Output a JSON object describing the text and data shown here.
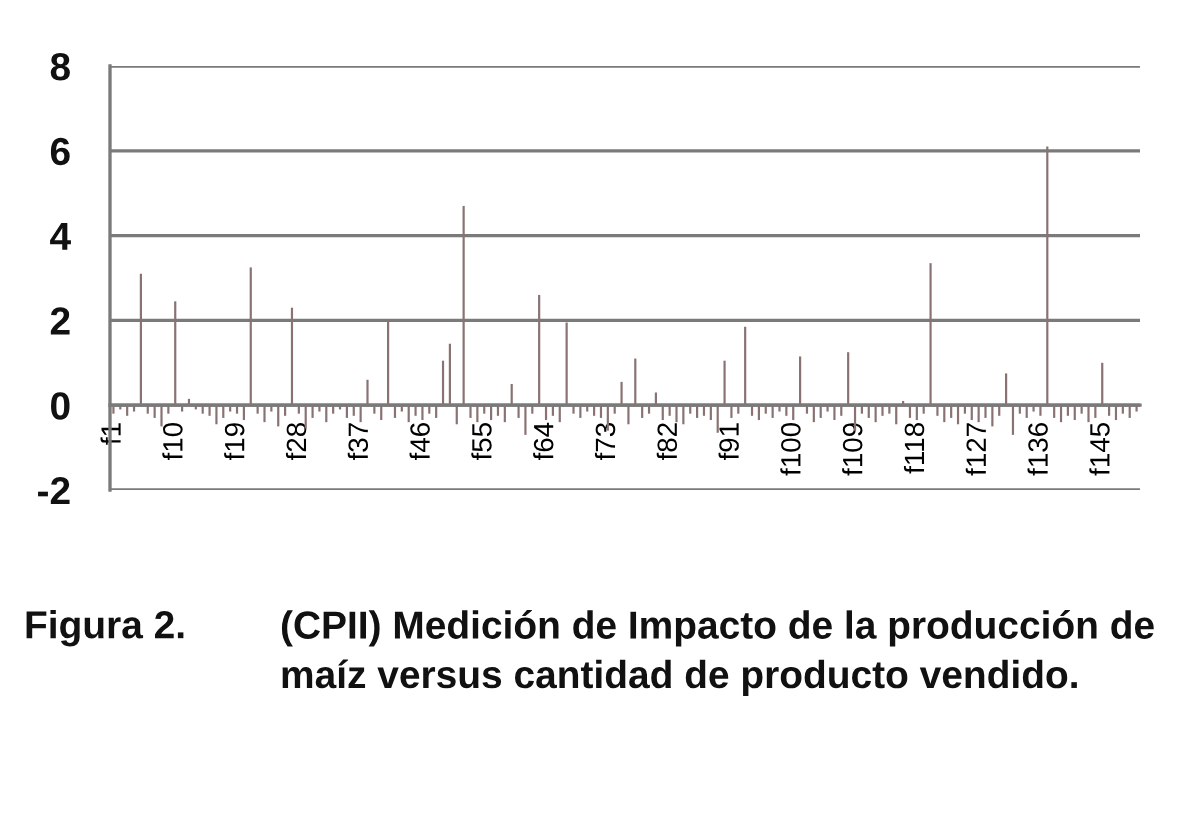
{
  "chart_data": {
    "type": "bar",
    "categories": [
      "f1",
      null,
      null,
      null,
      null,
      null,
      null,
      null,
      null,
      "f10",
      null,
      null,
      null,
      null,
      null,
      null,
      null,
      null,
      "f19",
      null,
      null,
      null,
      null,
      null,
      null,
      null,
      null,
      "f28",
      null,
      null,
      null,
      null,
      null,
      null,
      null,
      null,
      "f37",
      null,
      null,
      null,
      null,
      null,
      null,
      null,
      null,
      "f46",
      null,
      null,
      null,
      null,
      null,
      null,
      null,
      null,
      "f55",
      null,
      null,
      null,
      null,
      null,
      null,
      null,
      null,
      "f64",
      null,
      null,
      null,
      null,
      null,
      null,
      null,
      null,
      "f73",
      null,
      null,
      null,
      null,
      null,
      null,
      null,
      null,
      "f82",
      null,
      null,
      null,
      null,
      null,
      null,
      null,
      null,
      "f91",
      null,
      null,
      null,
      null,
      null,
      null,
      null,
      null,
      "f100",
      null,
      null,
      null,
      null,
      null,
      null,
      null,
      null,
      "f109",
      null,
      null,
      null,
      null,
      null,
      null,
      null,
      null,
      "f118",
      null,
      null,
      null,
      null,
      null,
      null,
      null,
      null,
      "f127",
      null,
      null,
      null,
      null,
      null,
      null,
      null,
      null,
      "f136",
      null,
      null,
      null,
      null,
      null,
      null,
      null,
      null,
      "f145",
      null,
      null,
      null,
      null,
      null
    ],
    "values": [
      -0.2,
      -0.1,
      -0.25,
      -0.15,
      3.1,
      -0.2,
      -0.3,
      -0.5,
      -0.2,
      2.45,
      -0.15,
      0.15,
      -0.1,
      -0.2,
      -0.25,
      -0.45,
      -0.3,
      -0.15,
      -0.2,
      -0.35,
      3.25,
      -0.2,
      -0.4,
      -0.15,
      -0.5,
      -0.25,
      2.3,
      -0.2,
      -0.55,
      -0.3,
      -0.15,
      -0.4,
      -0.2,
      -0.1,
      -0.3,
      -0.25,
      -0.4,
      0.6,
      -0.2,
      -0.35,
      2.0,
      -0.3,
      -0.15,
      -0.4,
      -0.25,
      -0.35,
      -0.2,
      -0.3,
      1.05,
      1.45,
      -0.45,
      4.7,
      -0.3,
      -0.4,
      -0.2,
      -0.35,
      -0.25,
      -0.4,
      0.5,
      -0.3,
      -0.7,
      -0.2,
      2.6,
      -0.35,
      -0.25,
      -0.4,
      1.95,
      -0.2,
      -0.3,
      -0.15,
      -0.25,
      -0.3,
      -0.6,
      -0.2,
      0.55,
      -0.45,
      1.1,
      -0.3,
      -0.2,
      0.3,
      -0.35,
      -0.25,
      -0.4,
      -0.45,
      -0.2,
      -0.3,
      -0.25,
      -0.35,
      -0.65,
      1.05,
      -0.3,
      -0.2,
      1.85,
      -0.25,
      -0.35,
      -0.2,
      -0.3,
      -0.15,
      -0.25,
      -0.35,
      1.15,
      -0.2,
      -0.4,
      -0.3,
      -0.15,
      -0.35,
      -0.25,
      1.25,
      -0.6,
      -0.2,
      -0.3,
      -0.4,
      -0.25,
      -0.2,
      -0.45,
      0.1,
      -0.3,
      -0.35,
      -0.2,
      3.35,
      -0.25,
      -0.4,
      -0.3,
      -0.45,
      -0.2,
      -0.35,
      -0.4,
      -0.3,
      -0.5,
      -0.25,
      0.75,
      -0.7,
      -0.2,
      -0.3,
      -0.15,
      -0.25,
      6.1,
      -0.3,
      -0.4,
      -0.25,
      -0.35,
      -0.2,
      -0.4,
      -0.3,
      1.0,
      -0.25,
      -0.35,
      -0.2,
      -0.3,
      -0.15
    ],
    "color": "#8a7272",
    "ylim": [
      -2,
      8
    ],
    "yticks": [
      -2,
      0,
      2,
      4,
      6,
      8
    ],
    "grid": "y",
    "annotations": [
      "Figura 2.",
      "(CPII) Medición de Impacto de la producción de maíz versus cantidad de producto vendido."
    ]
  }
}
